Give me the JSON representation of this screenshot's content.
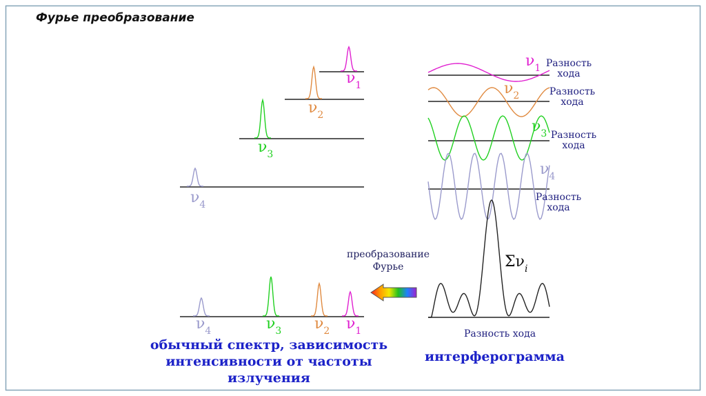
{
  "header": {
    "title": "Фурье преобразование"
  },
  "components": {
    "peaks": [
      {
        "symbol": "ν",
        "index": "1"
      },
      {
        "symbol": "ν",
        "index": "2"
      },
      {
        "symbol": "ν",
        "index": "3"
      },
      {
        "symbol": "ν",
        "index": "4"
      }
    ]
  },
  "waves": [
    {
      "symbol": "ν",
      "index": "1",
      "axis_label": "Разность хода"
    },
    {
      "symbol": "ν",
      "index": "2",
      "axis_label": "Разность хода"
    },
    {
      "symbol": "ν",
      "index": "3",
      "axis_label": "Разность хода"
    },
    {
      "symbol": "ν",
      "index": "4",
      "axis_label": "Разность хода"
    }
  ],
  "transform_label": "преобразование Фурье",
  "spectrum": {
    "peaks": [
      {
        "symbol": "ν",
        "index": "4"
      },
      {
        "symbol": "ν",
        "index": "3"
      },
      {
        "symbol": "ν",
        "index": "2"
      },
      {
        "symbol": "ν",
        "index": "1"
      }
    ],
    "caption": "обычный спектр, зависимость интенсивности от частоты излучения"
  },
  "interferogram": {
    "sum_symbol": "Σν",
    "sum_index": "i",
    "axis_label": "Разность хода",
    "caption": "интерферограмма"
  }
}
